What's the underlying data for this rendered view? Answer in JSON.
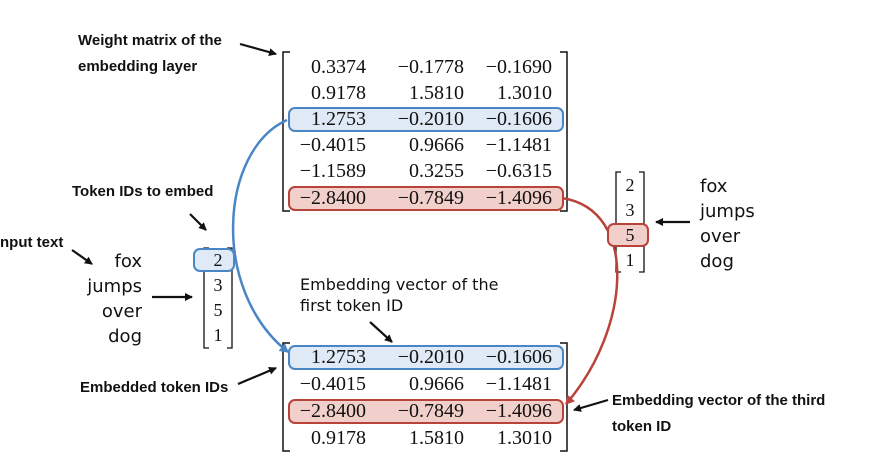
{
  "labels": {
    "weight_matrix": [
      "Weight matrix of the",
      "embedding layer"
    ],
    "token_ids_to_embed": "Token IDs to embed",
    "input_text": "nput text",
    "embedded_token_ids": "Embedded token IDs",
    "first_vector_note": [
      "Embedding vector of the",
      "first token ID"
    ],
    "third_vector_note": [
      "Embedding vector of the third",
      "token ID"
    ]
  },
  "input_words": [
    "fox",
    "jumps",
    "over",
    "dog"
  ],
  "token_ids": [
    "2",
    "3",
    "5",
    "1"
  ],
  "weight_matrix": [
    [
      "0.3374",
      "−0.1778",
      "−0.1690"
    ],
    [
      "0.9178",
      "1.5810",
      "1.3010"
    ],
    [
      "1.2753",
      "−0.2010",
      "−0.1606"
    ],
    [
      "−0.4015",
      "0.9666",
      "−1.1481"
    ],
    [
      "−1.1589",
      "0.3255",
      "−0.6315"
    ],
    [
      "−2.8400",
      "−0.7849",
      "−1.4096"
    ]
  ],
  "embedded_matrix": [
    [
      "1.2753",
      "−0.2010",
      "−0.1606"
    ],
    [
      "−0.4015",
      "0.9666",
      "−1.1481"
    ],
    [
      "−2.8400",
      "−0.7849",
      "−1.4096"
    ],
    [
      "0.9178",
      "1.5810",
      "1.3010"
    ]
  ],
  "colors": {
    "blue": "#4a86c5",
    "blue_fill": "#dfeaf6",
    "red": "#b8433a",
    "red_fill": "#f1cfcb"
  }
}
